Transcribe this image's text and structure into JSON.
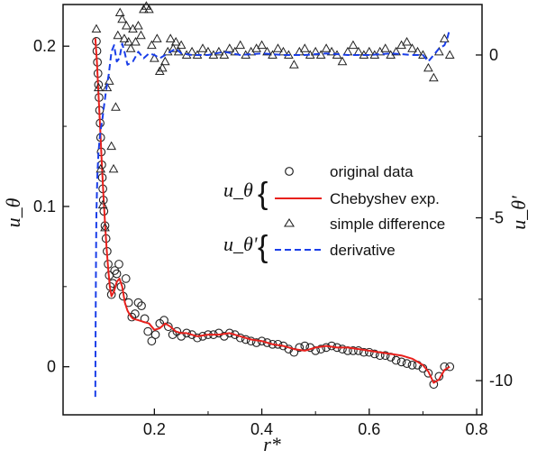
{
  "chart_data": {
    "type": "line",
    "title": "",
    "xlabel": "r*",
    "ylabel_left": "u_θ",
    "ylabel_right": "u_θ'",
    "xlim": [
      0.03,
      0.81
    ],
    "ylim_left": [
      -0.03,
      0.226
    ],
    "ylim_right": [
      -11.05,
      1.55
    ],
    "xticks": [
      "0.2",
      "0.4",
      "0.6",
      "0.8"
    ],
    "yticks_left": [
      "0",
      "0.1",
      "0.2"
    ],
    "yticks_right": [
      "0",
      "-5",
      "-10"
    ],
    "legend": {
      "groups": [
        {
          "symbol": "u_θ",
          "entries": [
            "original data",
            "Chebyshev exp."
          ]
        },
        {
          "symbol": "u_θ'",
          "entries": [
            "simple difference",
            "derivative"
          ]
        }
      ],
      "placement": "center-right"
    },
    "series": [
      {
        "name": "original data",
        "axis": "left",
        "marker": "circle",
        "color": "#222222",
        "x": [
          0.092,
          0.093,
          0.094,
          0.095,
          0.096,
          0.097,
          0.098,
          0.099,
          0.1,
          0.101,
          0.102,
          0.103,
          0.104,
          0.105,
          0.106,
          0.108,
          0.11,
          0.112,
          0.114,
          0.116,
          0.118,
          0.12,
          0.123,
          0.126,
          0.13,
          0.134,
          0.138,
          0.142,
          0.147,
          0.152,
          0.158,
          0.164,
          0.17,
          0.176,
          0.182,
          0.188,
          0.195,
          0.202,
          0.21,
          0.218,
          0.226,
          0.234,
          0.242,
          0.25,
          0.26,
          0.27,
          0.28,
          0.29,
          0.3,
          0.31,
          0.32,
          0.33,
          0.34,
          0.35,
          0.36,
          0.37,
          0.38,
          0.39,
          0.4,
          0.41,
          0.42,
          0.43,
          0.44,
          0.45,
          0.46,
          0.47,
          0.48,
          0.49,
          0.5,
          0.51,
          0.52,
          0.53,
          0.54,
          0.55,
          0.56,
          0.57,
          0.58,
          0.59,
          0.6,
          0.61,
          0.62,
          0.63,
          0.64,
          0.65,
          0.66,
          0.67,
          0.68,
          0.69,
          0.7,
          0.71,
          0.72,
          0.73,
          0.74,
          0.75
        ],
        "y": [
          0.203,
          0.197,
          0.19,
          0.183,
          0.176,
          0.168,
          0.16,
          0.152,
          0.143,
          0.134,
          0.126,
          0.118,
          0.111,
          0.104,
          0.097,
          0.088,
          0.08,
          0.072,
          0.064,
          0.057,
          0.05,
          0.045,
          0.052,
          0.06,
          0.058,
          0.064,
          0.05,
          0.044,
          0.055,
          0.04,
          0.031,
          0.033,
          0.04,
          0.038,
          0.03,
          0.022,
          0.016,
          0.02,
          0.027,
          0.029,
          0.025,
          0.02,
          0.022,
          0.019,
          0.021,
          0.02,
          0.018,
          0.019,
          0.02,
          0.02,
          0.021,
          0.019,
          0.021,
          0.02,
          0.018,
          0.017,
          0.016,
          0.015,
          0.016,
          0.015,
          0.014,
          0.014,
          0.013,
          0.011,
          0.009,
          0.012,
          0.013,
          0.012,
          0.01,
          0.011,
          0.012,
          0.013,
          0.012,
          0.011,
          0.01,
          0.01,
          0.01,
          0.009,
          0.009,
          0.008,
          0.007,
          0.007,
          0.006,
          0.004,
          0.003,
          0.002,
          0.001,
          0.001,
          -0.001,
          -0.004,
          -0.011,
          -0.006,
          0.0,
          0.0
        ]
      },
      {
        "name": "Chebyshev exp.",
        "axis": "left",
        "marker": "none",
        "color": "#e8201c",
        "x": [
          0.09,
          0.093,
          0.096,
          0.099,
          0.102,
          0.105,
          0.108,
          0.111,
          0.114,
          0.117,
          0.12,
          0.125,
          0.13,
          0.135,
          0.14,
          0.145,
          0.15,
          0.155,
          0.16,
          0.17,
          0.18,
          0.19,
          0.2,
          0.21,
          0.22,
          0.23,
          0.24,
          0.25,
          0.26,
          0.28,
          0.3,
          0.32,
          0.34,
          0.36,
          0.38,
          0.4,
          0.42,
          0.44,
          0.46,
          0.48,
          0.5,
          0.52,
          0.54,
          0.56,
          0.58,
          0.6,
          0.62,
          0.64,
          0.66,
          0.68,
          0.69,
          0.7,
          0.71,
          0.72,
          0.73,
          0.74,
          0.75
        ],
        "y": [
          0.205,
          0.19,
          0.17,
          0.15,
          0.128,
          0.108,
          0.09,
          0.074,
          0.061,
          0.05,
          0.044,
          0.047,
          0.053,
          0.055,
          0.05,
          0.04,
          0.035,
          0.032,
          0.03,
          0.029,
          0.028,
          0.027,
          0.023,
          0.024,
          0.027,
          0.025,
          0.022,
          0.021,
          0.021,
          0.019,
          0.02,
          0.02,
          0.021,
          0.019,
          0.017,
          0.016,
          0.014,
          0.013,
          0.011,
          0.01,
          0.012,
          0.013,
          0.012,
          0.012,
          0.011,
          0.01,
          0.009,
          0.008,
          0.007,
          0.005,
          0.003,
          0.001,
          -0.003,
          -0.01,
          -0.008,
          -0.002,
          0.0
        ]
      },
      {
        "name": "simple difference",
        "axis": "right",
        "marker": "triangle",
        "color": "#222222",
        "x": [
          0.092,
          0.096,
          0.1,
          0.104,
          0.108,
          0.112,
          0.116,
          0.12,
          0.124,
          0.128,
          0.132,
          0.136,
          0.14,
          0.144,
          0.148,
          0.152,
          0.156,
          0.16,
          0.165,
          0.17,
          0.175,
          0.18,
          0.185,
          0.19,
          0.195,
          0.2,
          0.205,
          0.21,
          0.215,
          0.22,
          0.225,
          0.23,
          0.235,
          0.24,
          0.245,
          0.25,
          0.26,
          0.27,
          0.28,
          0.29,
          0.3,
          0.31,
          0.32,
          0.33,
          0.34,
          0.35,
          0.36,
          0.37,
          0.38,
          0.39,
          0.4,
          0.41,
          0.42,
          0.43,
          0.44,
          0.45,
          0.46,
          0.47,
          0.48,
          0.49,
          0.5,
          0.51,
          0.52,
          0.53,
          0.54,
          0.55,
          0.56,
          0.57,
          0.58,
          0.59,
          0.6,
          0.61,
          0.62,
          0.63,
          0.64,
          0.65,
          0.66,
          0.67,
          0.68,
          0.69,
          0.7,
          0.71,
          0.72,
          0.73,
          0.74,
          0.75
        ],
        "y": [
          0.8,
          -1.0,
          -3.5,
          -4.6,
          -5.3,
          -1.0,
          -0.8,
          -2.8,
          -3.5,
          -1.6,
          0.6,
          1.3,
          1.1,
          0.5,
          0.9,
          0.4,
          0.2,
          0.8,
          0.4,
          0.9,
          0.6,
          1.4,
          1.5,
          1.4,
          0.3,
          -0.1,
          0.5,
          -0.5,
          -0.4,
          -0.2,
          0.1,
          0.5,
          0.2,
          0.4,
          0.1,
          0.3,
          0.0,
          0.1,
          0.0,
          0.2,
          0.1,
          0.0,
          0.1,
          0.0,
          0.2,
          0.1,
          0.3,
          0.0,
          0.1,
          0.2,
          0.3,
          0.1,
          0.0,
          0.2,
          0.1,
          0.0,
          -0.3,
          0.1,
          0.2,
          0.0,
          0.1,
          0.0,
          0.2,
          0.1,
          0.0,
          -0.2,
          0.1,
          0.3,
          0.1,
          0.0,
          0.1,
          0.0,
          0.1,
          0.2,
          0.0,
          0.1,
          0.3,
          0.4,
          0.2,
          0.1,
          0.0,
          -0.4,
          -0.7,
          0.1,
          0.5,
          0.0
        ]
      },
      {
        "name": "derivative",
        "axis": "right",
        "marker": "none",
        "color": "#1a3ee8",
        "x": [
          0.09,
          0.0905,
          0.091,
          0.0915,
          0.092,
          0.093,
          0.094,
          0.096,
          0.098,
          0.1,
          0.103,
          0.106,
          0.11,
          0.115,
          0.12,
          0.125,
          0.13,
          0.135,
          0.14,
          0.145,
          0.15,
          0.16,
          0.17,
          0.18,
          0.19,
          0.2,
          0.21,
          0.22,
          0.23,
          0.24,
          0.25,
          0.27,
          0.3,
          0.33,
          0.36,
          0.4,
          0.44,
          0.48,
          0.52,
          0.56,
          0.6,
          0.64,
          0.68,
          0.7,
          0.71,
          0.72,
          0.73,
          0.74,
          0.745,
          0.75
        ],
        "y": [
          -10.5,
          -8.5,
          -7.0,
          -5.8,
          -4.9,
          -4.2,
          -3.6,
          -3.0,
          -2.6,
          -2.3,
          -2.0,
          -1.6,
          -1.1,
          -0.6,
          0.1,
          0.3,
          -0.2,
          -0.1,
          0.35,
          0.05,
          -0.3,
          -0.2,
          0.1,
          -0.1,
          0.05,
          0.0,
          -0.1,
          0.0,
          0.1,
          0.2,
          0.05,
          0.0,
          0.0,
          0.1,
          0.0,
          0.05,
          0.0,
          0.0,
          0.05,
          0.0,
          0.0,
          0.05,
          0.0,
          0.0,
          -0.2,
          0.0,
          0.2,
          0.3,
          0.5,
          0.8
        ]
      }
    ]
  }
}
